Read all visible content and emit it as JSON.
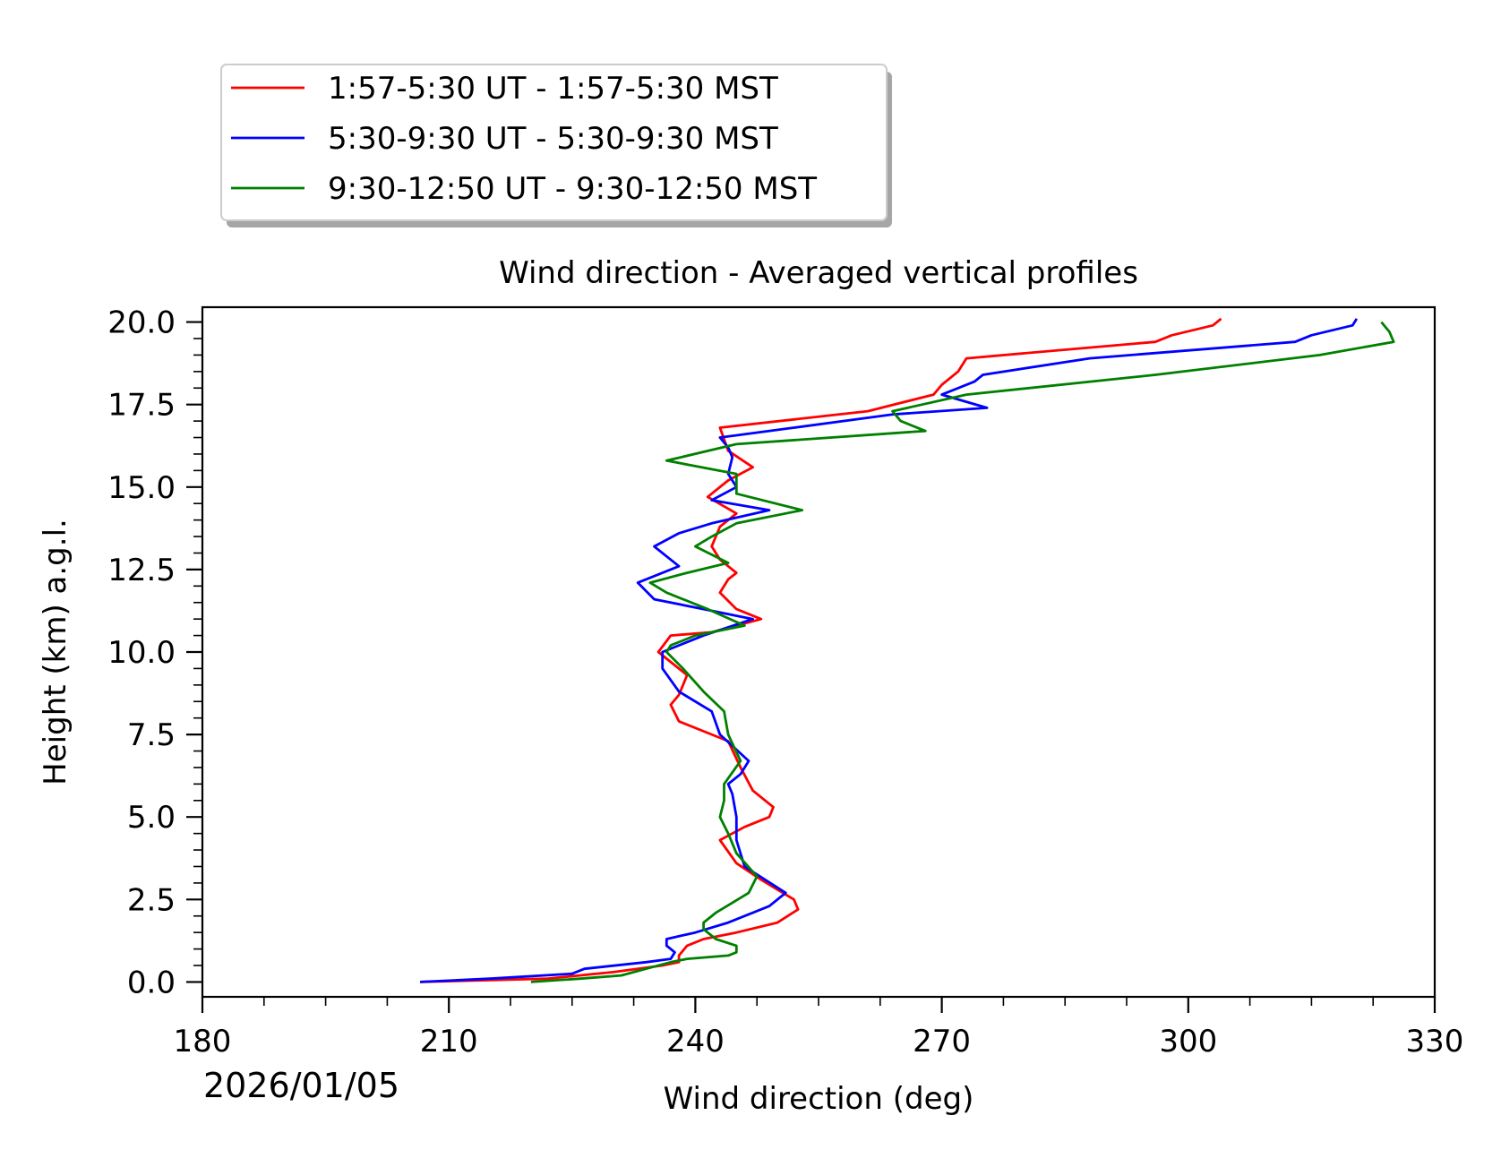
{
  "chart_data": {
    "type": "line",
    "title": "Wind direction - Averaged vertical profiles",
    "xlabel": "Wind direction (deg)",
    "ylabel": "Height (km) a.g.l.",
    "xlim": [
      180,
      330
    ],
    "ylim": [
      -0.45,
      20.45
    ],
    "x_ticks": [
      180,
      210,
      240,
      270,
      300,
      330
    ],
    "x_minor_step": 7.5,
    "y_ticks": [
      0.0,
      2.5,
      5.0,
      7.5,
      10.0,
      12.5,
      15.0,
      17.5,
      20.0
    ],
    "y_minor_step": 0.5,
    "date_label": "2026/01/05",
    "legend_position": "top-left, above plot",
    "grid": false,
    "series": [
      {
        "name": "1:57-5:30 UT - 1:57-5:30 MST",
        "color": "#ff0000",
        "points": [
          [
            206.5,
            0.0
          ],
          [
            222,
            0.1
          ],
          [
            230,
            0.3
          ],
          [
            236,
            0.5
          ],
          [
            238,
            0.6
          ],
          [
            238,
            0.8
          ],
          [
            239,
            1.1
          ],
          [
            241,
            1.3
          ],
          [
            245,
            1.5
          ],
          [
            250,
            1.8
          ],
          [
            252.5,
            2.2
          ],
          [
            252,
            2.5
          ],
          [
            250,
            2.8
          ],
          [
            248,
            3.1
          ],
          [
            245,
            3.6
          ],
          [
            243,
            4.3
          ],
          [
            246,
            4.7
          ],
          [
            249,
            5.0
          ],
          [
            249.5,
            5.3
          ],
          [
            247,
            5.8
          ],
          [
            245.5,
            6.5
          ],
          [
            244,
            7.3
          ],
          [
            238,
            7.9
          ],
          [
            237,
            8.4
          ],
          [
            238,
            8.7
          ],
          [
            239,
            9.3
          ],
          [
            237,
            9.7
          ],
          [
            235.5,
            10.0
          ],
          [
            237,
            10.5
          ],
          [
            242,
            10.6
          ],
          [
            248,
            11.0
          ],
          [
            245,
            11.3
          ],
          [
            243,
            11.8
          ],
          [
            244,
            12.2
          ],
          [
            245,
            12.4
          ],
          [
            243,
            12.8
          ],
          [
            242,
            13.2
          ],
          [
            243,
            13.8
          ],
          [
            245,
            14.2
          ],
          [
            241.5,
            14.7
          ],
          [
            244,
            15.2
          ],
          [
            247,
            15.6
          ],
          [
            244,
            16.1
          ],
          [
            243,
            16.8
          ],
          [
            261,
            17.3
          ],
          [
            269,
            17.8
          ],
          [
            270,
            18.1
          ],
          [
            272,
            18.5
          ],
          [
            273,
            18.9
          ],
          [
            296,
            19.4
          ],
          [
            298,
            19.6
          ],
          [
            303,
            19.9
          ],
          [
            304,
            20.1
          ]
        ]
      },
      {
        "name": "5:30-9:30 UT - 5:30-9:30 MST",
        "color": "#0000ff",
        "points": [
          [
            206.5,
            0.0
          ],
          [
            215,
            0.1
          ],
          [
            225,
            0.25
          ],
          [
            226.5,
            0.4
          ],
          [
            234,
            0.6
          ],
          [
            237,
            0.7
          ],
          [
            237.5,
            0.9
          ],
          [
            236.5,
            1.1
          ],
          [
            236.5,
            1.3
          ],
          [
            240,
            1.5
          ],
          [
            244,
            1.8
          ],
          [
            249,
            2.3
          ],
          [
            251,
            2.7
          ],
          [
            246,
            3.5
          ],
          [
            245,
            4.3
          ],
          [
            245,
            5.0
          ],
          [
            244.5,
            5.7
          ],
          [
            244,
            6.0
          ],
          [
            245.5,
            6.3
          ],
          [
            246.5,
            6.7
          ],
          [
            243,
            7.5
          ],
          [
            242,
            8.2
          ],
          [
            238,
            8.8
          ],
          [
            236,
            9.5
          ],
          [
            236,
            10.0
          ],
          [
            239,
            10.3
          ],
          [
            241,
            10.5
          ],
          [
            247,
            11.0
          ],
          [
            241,
            11.3
          ],
          [
            235,
            11.6
          ],
          [
            233,
            12.1
          ],
          [
            238,
            12.6
          ],
          [
            236.5,
            12.9
          ],
          [
            235,
            13.2
          ],
          [
            238,
            13.6
          ],
          [
            242,
            13.9
          ],
          [
            249,
            14.3
          ],
          [
            242,
            14.6
          ],
          [
            245,
            15.0
          ],
          [
            244,
            15.4
          ],
          [
            244.5,
            15.9
          ],
          [
            244,
            16.2
          ],
          [
            243,
            16.5
          ],
          [
            252,
            16.8
          ],
          [
            264,
            17.2
          ],
          [
            275.5,
            17.4
          ],
          [
            270,
            17.8
          ],
          [
            272,
            18.0
          ],
          [
            274,
            18.2
          ],
          [
            275,
            18.4
          ],
          [
            288,
            18.9
          ],
          [
            313,
            19.4
          ],
          [
            315,
            19.6
          ],
          [
            320,
            19.9
          ],
          [
            320.5,
            20.1
          ]
        ]
      },
      {
        "name": "9:30-12:50 UT - 9:30-12:50 MST",
        "color": "#008000",
        "points": [
          [
            220,
            0.0
          ],
          [
            226,
            0.1
          ],
          [
            231,
            0.2
          ],
          [
            234,
            0.4
          ],
          [
            237,
            0.6
          ],
          [
            239,
            0.7
          ],
          [
            244,
            0.8
          ],
          [
            245,
            0.9
          ],
          [
            245,
            1.1
          ],
          [
            242.5,
            1.3
          ],
          [
            241,
            1.6
          ],
          [
            241,
            1.8
          ],
          [
            242.5,
            2.1
          ],
          [
            246.5,
            2.7
          ],
          [
            247.5,
            3.2
          ],
          [
            245,
            3.9
          ],
          [
            244,
            4.5
          ],
          [
            243,
            5.0
          ],
          [
            243.5,
            5.5
          ],
          [
            243.5,
            6.0
          ],
          [
            245.5,
            6.7
          ],
          [
            244,
            7.5
          ],
          [
            243.5,
            8.2
          ],
          [
            241,
            8.8
          ],
          [
            238.5,
            9.5
          ],
          [
            236.5,
            10.0
          ],
          [
            237,
            10.2
          ],
          [
            240,
            10.5
          ],
          [
            246,
            10.8
          ],
          [
            241.5,
            11.3
          ],
          [
            236.5,
            11.8
          ],
          [
            234.5,
            12.1
          ],
          [
            239,
            12.4
          ],
          [
            244,
            12.7
          ],
          [
            240,
            13.2
          ],
          [
            242,
            13.5
          ],
          [
            245,
            13.9
          ],
          [
            253,
            14.3
          ],
          [
            245,
            14.8
          ],
          [
            245,
            15.3
          ],
          [
            245,
            15.4
          ],
          [
            236.5,
            15.8
          ],
          [
            245,
            16.3
          ],
          [
            268,
            16.7
          ],
          [
            265,
            17.0
          ],
          [
            264,
            17.3
          ],
          [
            273,
            17.8
          ],
          [
            296,
            18.4
          ],
          [
            316,
            19.0
          ],
          [
            325,
            19.4
          ],
          [
            324.5,
            19.7
          ],
          [
            323.5,
            20.0
          ]
        ]
      }
    ]
  }
}
